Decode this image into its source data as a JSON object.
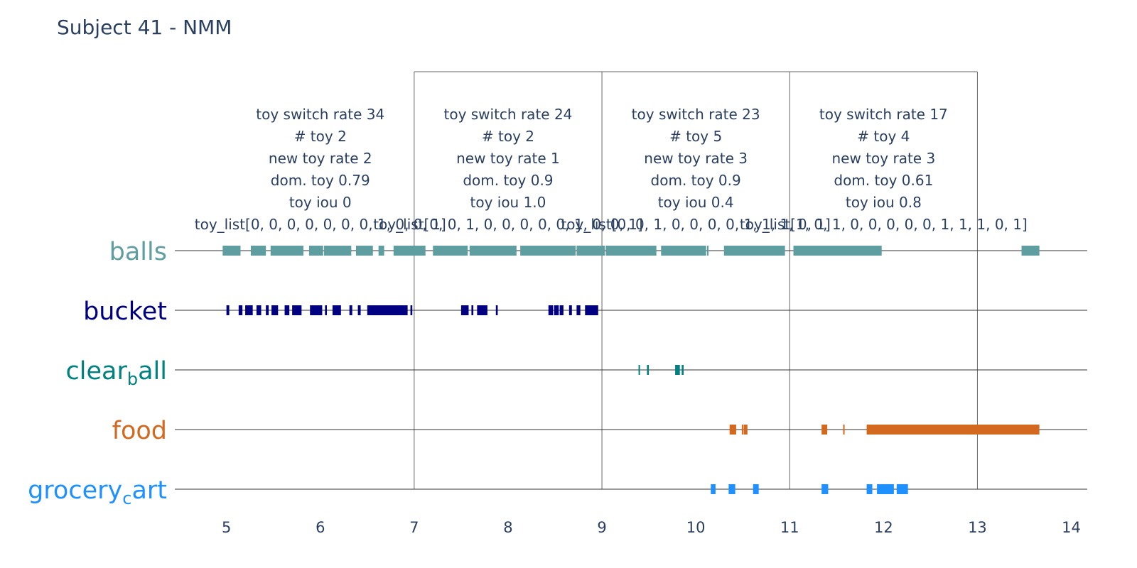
{
  "chart_data": {
    "type": "timeline",
    "title": "Subject 41 - NMM",
    "x_range": [
      4.45,
      14.17
    ],
    "x_ticks": [
      5,
      6,
      7,
      8,
      9,
      10,
      11,
      12,
      13,
      14
    ],
    "window_boundaries": [
      7,
      9,
      11,
      13
    ],
    "categories": [
      {
        "label": "balls",
        "sub": "",
        "color": "#5f9ea0"
      },
      {
        "label": "bucket",
        "sub": "",
        "color": "#000080"
      },
      {
        "label": "clear",
        "sub": "b",
        "tail": "all",
        "color": "#008080"
      },
      {
        "label": "food",
        "sub": "",
        "color": "#d2691e"
      },
      {
        "label": "grocery",
        "sub": "c",
        "tail": "art",
        "color": "#1e90ff"
      }
    ],
    "segments": {
      "balls": [
        [
          4.96,
          5.15
        ],
        [
          5.26,
          5.42
        ],
        [
          5.47,
          5.82
        ],
        [
          5.88,
          6.03
        ],
        [
          6.04,
          6.33
        ],
        [
          6.38,
          6.56
        ],
        [
          6.62,
          6.68
        ],
        [
          6.78,
          7.12
        ],
        [
          7.2,
          7.57
        ],
        [
          7.59,
          8.09
        ],
        [
          8.13,
          8.72
        ],
        [
          8.73,
          9.03
        ],
        [
          9.04,
          9.58
        ],
        [
          9.63,
          10.11
        ],
        [
          10.12,
          10.13
        ],
        [
          10.3,
          10.95
        ],
        [
          11.04,
          11.98
        ],
        [
          13.47,
          13.66
        ]
      ],
      "bucket": [
        [
          5.0,
          5.03
        ],
        [
          5.13,
          5.17
        ],
        [
          5.2,
          5.28
        ],
        [
          5.32,
          5.37
        ],
        [
          5.42,
          5.45
        ],
        [
          5.48,
          5.55
        ],
        [
          5.62,
          5.67
        ],
        [
          5.7,
          5.8
        ],
        [
          5.89,
          6.02
        ],
        [
          6.05,
          6.07
        ],
        [
          6.13,
          6.22
        ],
        [
          6.31,
          6.34
        ],
        [
          6.4,
          6.43
        ],
        [
          6.5,
          6.93
        ],
        [
          6.96,
          6.98
        ],
        [
          7.5,
          7.58
        ],
        [
          7.61,
          7.63
        ],
        [
          7.67,
          7.78
        ],
        [
          7.87,
          7.89
        ],
        [
          8.43,
          8.48
        ],
        [
          8.49,
          8.54
        ],
        [
          8.55,
          8.59
        ],
        [
          8.65,
          8.68
        ],
        [
          8.73,
          8.77
        ],
        [
          8.82,
          8.96
        ]
      ],
      "clear_ball": [
        [
          9.39,
          9.4
        ],
        [
          9.48,
          9.5
        ],
        [
          9.78,
          9.83
        ],
        [
          9.85,
          9.87
        ]
      ],
      "food": [
        [
          10.36,
          10.43
        ],
        [
          10.49,
          10.5
        ],
        [
          10.51,
          10.55
        ],
        [
          11.34,
          11.4
        ],
        [
          11.57,
          11.58
        ],
        [
          11.82,
          13.66
        ]
      ],
      "grocery_cart": [
        [
          10.16,
          10.21
        ],
        [
          10.35,
          10.42
        ],
        [
          10.61,
          10.67
        ],
        [
          11.34,
          11.41
        ],
        [
          11.82,
          11.88
        ],
        [
          11.93,
          12.11
        ],
        [
          12.14,
          12.26
        ]
      ]
    },
    "windows": [
      {
        "switch": "toy switch rate 34",
        "count": "# toy 2",
        "new": "new toy rate 2",
        "dom": "dom. toy 0.79",
        "iou": "toy iou 0",
        "list": "toy_list[0, 0, 0, 0, 0, 0, 0, 1, 0, 0, 1]"
      },
      {
        "switch": "toy switch rate 24",
        "count": "# toy 2",
        "new": "new toy rate 1",
        "dom": "dom. toy 0.9",
        "iou": "toy iou 1.0",
        "list": "toy_list[0, 0, 1, 0, 0, 0, 0, 0, 1, 0, 0, 1]"
      },
      {
        "switch": "toy switch rate 23",
        "count": "# toy 5",
        "new": "new toy rate 3",
        "dom": "dom. toy 0.9",
        "iou": "toy iou 0.4",
        "list": "toy_list[0, 0, 1, 0, 0, 0, 0, 1, 1, 1, 0, 1]"
      },
      {
        "switch": "toy switch rate 17",
        "count": "# toy 4",
        "new": "new toy rate 3",
        "dom": "dom. toy 0.61",
        "iou": "toy iou 0.8",
        "list": "toy_list[1, 0, 1, 0, 0, 0, 0, 0, 1, 1, 1, 0, 1]"
      }
    ]
  }
}
